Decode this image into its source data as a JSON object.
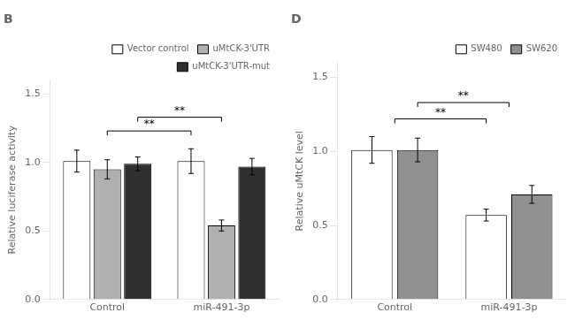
{
  "chart_data": [
    {
      "type": "bar",
      "title": "B",
      "categories": [
        "Control",
        "miR-491-3p"
      ],
      "series": [
        {
          "name": "Vector control",
          "color": "#ffffff",
          "values": [
            1.01,
            1.01
          ],
          "errors": [
            0.08,
            0.09
          ]
        },
        {
          "name": "uMtCK-3'UTR",
          "color": "#b0b0b0",
          "values": [
            0.95,
            0.54
          ],
          "errors": [
            0.07,
            0.04
          ]
        },
        {
          "name": "uMtCK-3'UTR-mut",
          "color": "#303030",
          "values": [
            0.99,
            0.97
          ],
          "errors": [
            0.05,
            0.06
          ]
        }
      ],
      "y_label": "Relative luciferase activity",
      "ylim": [
        0.0,
        1.6
      ],
      "yticks": [
        {
          "value": 0.0,
          "label": "0.0"
        },
        {
          "value": 0.5,
          "label": "0.5"
        },
        {
          "value": 1.0,
          "label": "1.0"
        },
        {
          "value": 1.5,
          "label": "1.5"
        }
      ],
      "grid": false,
      "legend": "upper right",
      "annotations": [
        {
          "text": "**",
          "y": 1.23,
          "from": {
            "category": "Control",
            "series": "uMtCK-3'UTR"
          },
          "to": {
            "category": "miR-491-3p",
            "series": "Vector control"
          }
        },
        {
          "text": "**",
          "y": 1.33,
          "from": {
            "category": "Control",
            "series": "uMtCK-3'UTR-mut"
          },
          "to": {
            "category": "miR-491-3p",
            "series": "uMtCK-3'UTR"
          }
        }
      ]
    },
    {
      "type": "bar",
      "title": "D",
      "categories": [
        "Control",
        "miR-491-3p"
      ],
      "series": [
        {
          "name": "SW480",
          "color": "#ffffff",
          "values": [
            1.01,
            0.57
          ],
          "errors": [
            0.09,
            0.04
          ]
        },
        {
          "name": "SW620",
          "color": "#909090",
          "values": [
            1.01,
            0.71
          ],
          "errors": [
            0.08,
            0.06
          ]
        }
      ],
      "y_label": "Relative uMtCK level",
      "ylim": [
        0.0,
        1.6
      ],
      "yticks": [
        {
          "value": 0.0,
          "label": "0.0"
        },
        {
          "value": 0.5,
          "label": "0.5"
        },
        {
          "value": 1.0,
          "label": "1.0"
        },
        {
          "value": 1.5,
          "label": "1.5"
        }
      ],
      "grid": false,
      "legend": "upper right",
      "annotations": [
        {
          "text": "**",
          "y": 1.22,
          "from": {
            "category": "Control"
          },
          "to": {
            "category": "miR-491-3p",
            "series": "SW480"
          }
        },
        {
          "text": "**",
          "y": 1.33,
          "from": {
            "category": "Control",
            "series": "SW620"
          },
          "to": {
            "category": "miR-491-3p"
          }
        }
      ]
    }
  ]
}
